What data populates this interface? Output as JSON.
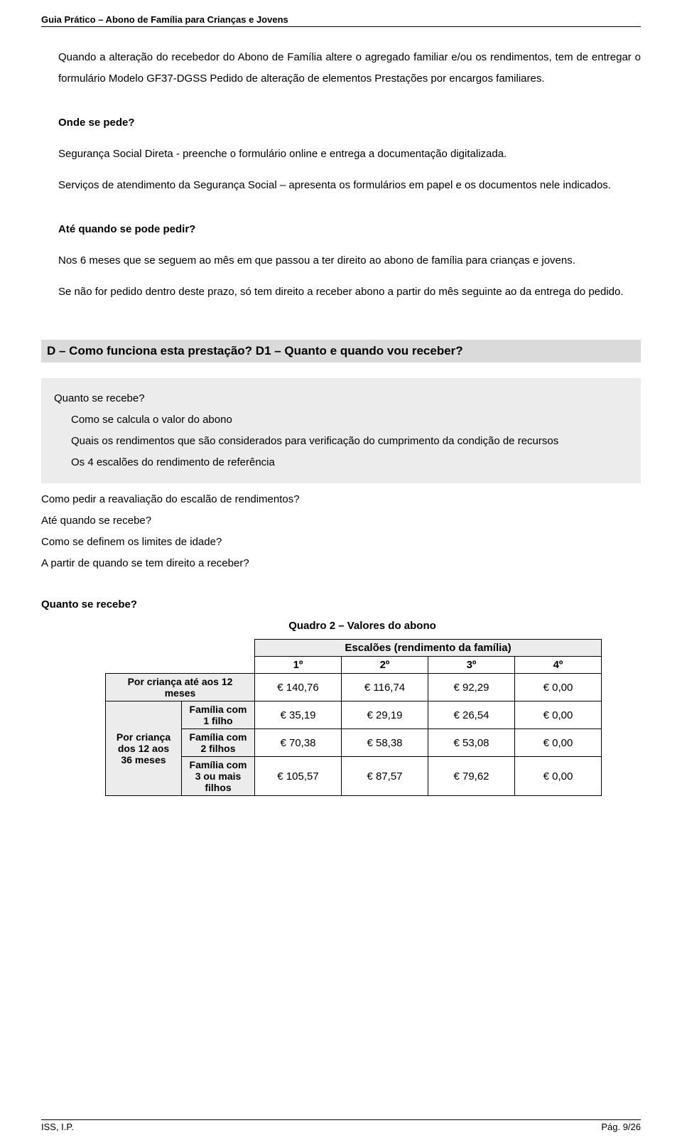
{
  "header": "Guia Prático – Abono de Família para Crianças e Jovens",
  "p1": "Quando a alteração do recebedor do Abono de Família altere o agregado familiar e/ou os rendimentos, tem de entregar o formulário Modelo GF37-DGSS Pedido de alteração de elementos Prestações por encargos familiares.",
  "h1": "Onde se pede?",
  "p2": "Segurança Social Direta - preenche o formulário online e entrega a documentação digitalizada.",
  "p3": "Serviços de atendimento da Segurança Social – apresenta os formulários em papel e os documentos nele indicados.",
  "h2": "Até quando se pode pedir?",
  "p4": "Nos 6 meses que se seguem ao mês em que passou a ter direito ao abono de família para crianças e jovens.",
  "p5": "Se não for pedido dentro deste prazo, só tem direito a receber abono a partir do mês seguinte ao da entrega do pedido.",
  "grey_bar": "D – Como funciona esta prestação? D1 – Quanto e quando vou receber?",
  "gb": {
    "l1": "Quanto se recebe?",
    "l2": "Como se calcula o valor do abono",
    "l3": "Quais os rendimentos que são considerados para verificação do cumprimento da condição de recursos",
    "l4": "Os 4 escalões do rendimento de referência"
  },
  "after": {
    "l1": "Como pedir a reavaliação do escalão de rendimentos?",
    "l2": "Até quando se recebe?",
    "l3": "Como se definem os limites de idade?",
    "l4": "A partir de quando se tem direito a receber?"
  },
  "h3": "Quanto se recebe?",
  "table_title": "Quadro 2 – Valores do abono",
  "table": {
    "top": "Escalões (rendimento da família)",
    "cols": [
      "1º",
      "2º",
      "3º",
      "4º"
    ],
    "r1_label": "Por criança até aos 12 meses",
    "left_label": "Por criança dos 12 aos 36 meses",
    "r2_label": "Família com 1 filho",
    "r3_label": "Família com 2 filhos",
    "r4_label": "Família com 3 ou mais filhos",
    "r1": [
      "€ 140,76",
      "€ 116,74",
      "€ 92,29",
      "€ 0,00"
    ],
    "r2": [
      "€ 35,19",
      "€ 29,19",
      "€ 26,54",
      "€ 0,00"
    ],
    "r3": [
      "€ 70,38",
      "€ 58,38",
      "€ 53,08",
      "€ 0,00"
    ],
    "r4": [
      "€ 105,57",
      "€ 87,57",
      "€ 79,62",
      "€ 0,00"
    ]
  },
  "footer_left": "ISS, I.P.",
  "footer_right": "Pág. 9/26"
}
